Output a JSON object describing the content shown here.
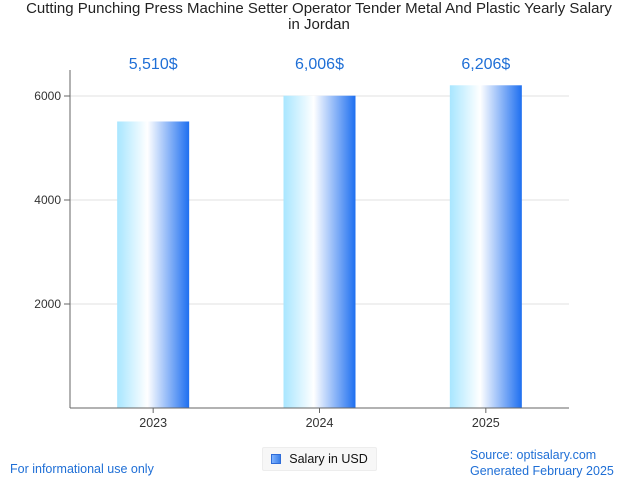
{
  "title_line1": "Cutting Punching Press Machine Setter Operator Tender Metal And Plastic Yearly Salary",
  "title_line2": "in Jordan",
  "footer": {
    "disclaimer": "For informational use only",
    "source": "Source: optisalary.com",
    "generated": "Generated February 2025"
  },
  "legend_label": "Salary in USD",
  "colors": {
    "label_blue": "#1f6fd6",
    "bar_light": "#a8e6ff",
    "bar_white": "#ffffff",
    "bar_dark": "#1e6ff0",
    "axis": "#666666",
    "grid": "#e0e0e0"
  },
  "chart_data": {
    "type": "bar",
    "categories": [
      "2023",
      "2024",
      "2025"
    ],
    "values": [
      5510,
      6006,
      6206
    ],
    "value_labels": [
      "5,510$",
      "6,006$",
      "6,206$"
    ],
    "series": [
      {
        "name": "Salary in USD",
        "values": [
          5510,
          6006,
          6206
        ]
      }
    ],
    "ylim": [
      0,
      6500
    ],
    "yticks": [
      2000,
      4000,
      6000
    ],
    "grid": true,
    "legend": "bottom-center"
  }
}
